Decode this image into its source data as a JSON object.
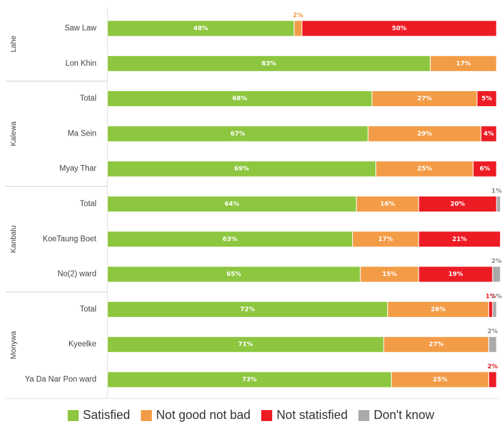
{
  "chart_data": {
    "type": "bar",
    "orientation": "horizontal",
    "stacked": true,
    "groups": [
      {
        "name": "Lahe",
        "categories": [
          "Saw Law",
          "Lon Khin"
        ]
      },
      {
        "name": "Kalewa",
        "categories": [
          "Total",
          "Ma Sein",
          "Myay Thar"
        ]
      },
      {
        "name": "Kanbalu",
        "categories": [
          "Total",
          "KoeTaung Boet",
          "No(2) ward"
        ]
      },
      {
        "name": "Monywa",
        "categories": [
          "Total",
          "Kyeelke",
          "Ya Da Nar Pon ward"
        ]
      }
    ],
    "categories": [
      "Saw Law",
      "Lon Khin",
      "Total",
      "Ma Sein",
      "Myay Thar",
      "Total",
      "KoeTaung Boet",
      "No(2) ward",
      "Total",
      "Kyeelke",
      "Ya Da Nar Pon ward"
    ],
    "series": [
      {
        "name": "Satisfied",
        "color": "#8DC63F",
        "values": [
          48,
          83,
          68,
          67,
          69,
          64,
          63,
          65,
          72,
          71,
          73
        ]
      },
      {
        "name": "Not good not bad",
        "color": "#F39C47",
        "values": [
          2,
          17,
          27,
          29,
          25,
          16,
          17,
          15,
          26,
          27,
          25
        ]
      },
      {
        "name": "Not statisfied",
        "color": "#ED1C24",
        "values": [
          50,
          0,
          5,
          4,
          6,
          20,
          21,
          19,
          1,
          0,
          2
        ]
      },
      {
        "name": "Don't know",
        "color": "#AAAAAA",
        "values": [
          0,
          0,
          0,
          0,
          0,
          1,
          0,
          2,
          1,
          2,
          0
        ]
      }
    ],
    "labels": [
      [
        "48%",
        "2%",
        "50%",
        null
      ],
      [
        "83%",
        "17%",
        null,
        null
      ],
      [
        "68%",
        "27%",
        "5%",
        null
      ],
      [
        "67%",
        "29%",
        "4%",
        null
      ],
      [
        "69%",
        "25%",
        "6%",
        null
      ],
      [
        "64%",
        "16%",
        "20%",
        "1%"
      ],
      [
        "63%",
        "17%",
        "21%",
        null
      ],
      [
        "65%",
        "15%",
        "19%",
        "2%"
      ],
      [
        "72%",
        "26%",
        "1%",
        "1%"
      ],
      [
        "71%",
        "27%",
        null,
        "2%"
      ],
      [
        "73%",
        "25%",
        "2%",
        null
      ]
    ],
    "xlim": [
      0,
      100
    ],
    "legend_position": "bottom"
  }
}
